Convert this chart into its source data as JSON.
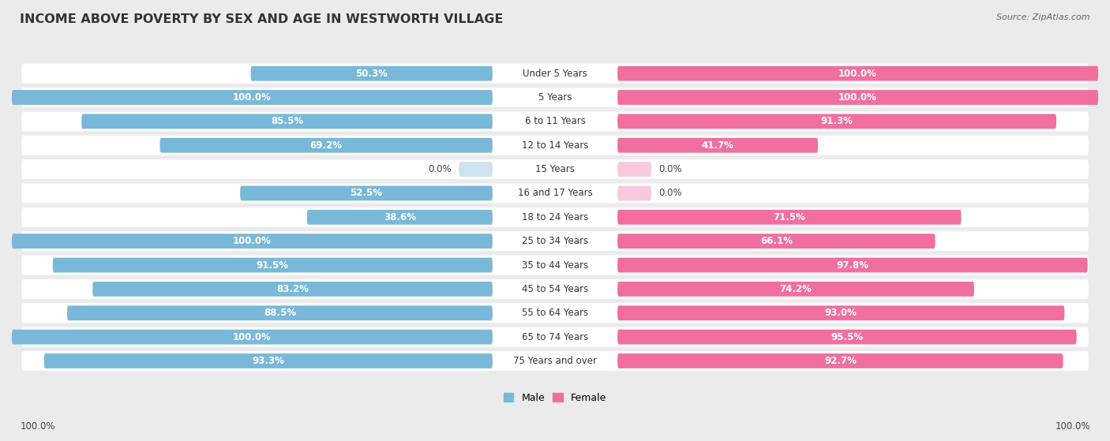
{
  "title": "INCOME ABOVE POVERTY BY SEX AND AGE IN WESTWORTH VILLAGE",
  "source": "Source: ZipAtlas.com",
  "categories": [
    "Under 5 Years",
    "5 Years",
    "6 to 11 Years",
    "12 to 14 Years",
    "15 Years",
    "16 and 17 Years",
    "18 to 24 Years",
    "25 to 34 Years",
    "35 to 44 Years",
    "45 to 54 Years",
    "55 to 64 Years",
    "65 to 74 Years",
    "75 Years and over"
  ],
  "male_values": [
    50.3,
    100.0,
    85.5,
    69.2,
    0.0,
    52.5,
    38.6,
    100.0,
    91.5,
    83.2,
    88.5,
    100.0,
    93.3
  ],
  "female_values": [
    100.0,
    100.0,
    91.3,
    41.7,
    0.0,
    0.0,
    71.5,
    66.1,
    97.8,
    74.2,
    93.0,
    95.5,
    92.7
  ],
  "male_color": "#7ab8d9",
  "female_color": "#f06fa0",
  "male_zero_color": "#cde3f0",
  "female_zero_color": "#fac8de",
  "bg_color": "#ebebeb",
  "row_bg_color": "#ffffff",
  "title_fontsize": 11.5,
  "label_fontsize": 8.5,
  "cat_fontsize": 8.5,
  "source_fontsize": 8,
  "legend_fontsize": 9,
  "bottom_note": "100.0%"
}
